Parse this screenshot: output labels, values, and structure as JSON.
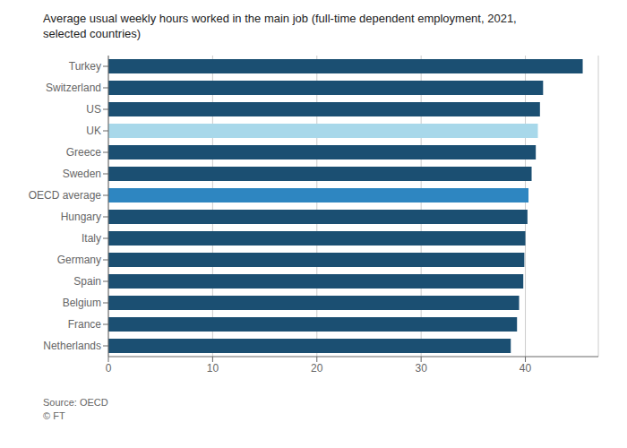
{
  "chart_data": {
    "type": "bar",
    "orientation": "horizontal",
    "title": "Average usual weekly hours worked in the main job (full-time dependent employment, 2021,",
    "subtitle": "selected countries)",
    "annotations": [
      "Source: OECD",
      "© FT"
    ],
    "categories": [
      "Turkey",
      "Switzerland",
      "US",
      "UK",
      "Greece",
      "Sweden",
      "OECD average",
      "Hungary",
      "Italy",
      "Germany",
      "Spain",
      "Belgium",
      "France",
      "Netherlands"
    ],
    "values": [
      45.5,
      41.7,
      41.4,
      41.2,
      41.0,
      40.6,
      40.3,
      40.2,
      40.0,
      39.9,
      39.8,
      39.4,
      39.2,
      38.6
    ],
    "colors": [
      "#1b4f72",
      "#1b4f72",
      "#1b4f72",
      "#a8d8ea",
      "#1b4f72",
      "#1b4f72",
      "#2e86c1",
      "#1b4f72",
      "#1b4f72",
      "#1b4f72",
      "#1b4f72",
      "#1b4f72",
      "#1b4f72",
      "#1b4f72"
    ],
    "xlim": [
      0,
      47
    ],
    "xticks": [
      0,
      10,
      20,
      30,
      40
    ],
    "grid": true
  }
}
